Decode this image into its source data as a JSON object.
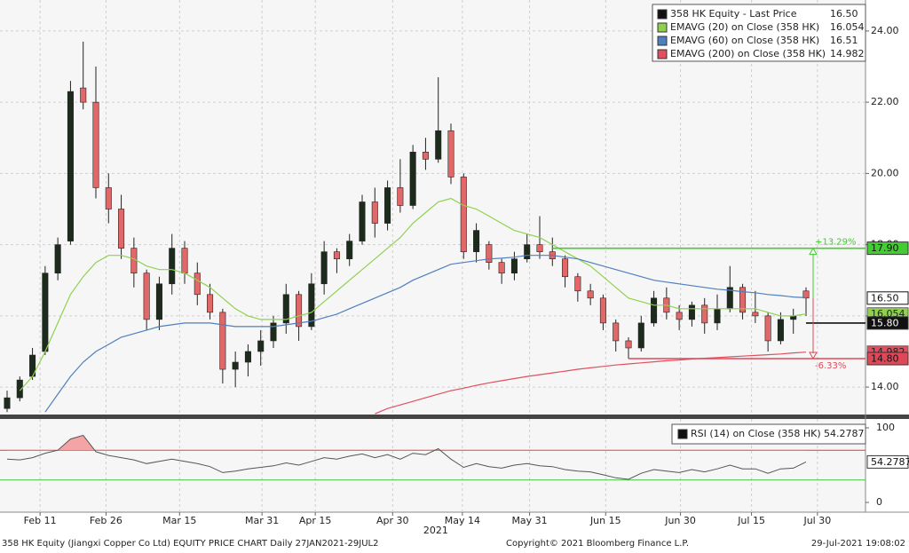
{
  "chart_data": [
    {
      "type": "candlestick",
      "name": "358 HK Equity - Last Price",
      "last_label": "16.50",
      "color": "#111111",
      "up_color": "#1c2b1c",
      "down_color": "#e06868",
      "open": [
        13.4,
        13.7,
        14.3,
        15.0,
        17.2,
        18.1,
        22.4,
        22.0,
        19.6,
        19.0,
        17.9,
        17.2,
        15.9,
        16.9,
        17.9,
        17.2,
        16.6,
        16.1,
        14.5,
        14.7,
        15.0,
        15.3,
        15.8,
        16.6,
        15.7,
        16.9,
        17.8,
        17.6,
        18.1,
        19.2,
        18.6,
        19.6,
        19.1,
        20.6,
        20.4,
        21.2,
        19.9,
        17.8,
        18.0,
        17.5,
        17.2,
        17.6,
        18.0,
        17.8,
        17.6,
        17.1,
        16.7,
        16.5,
        15.8,
        15.3,
        15.1,
        15.8,
        16.5,
        16.1,
        15.9,
        16.3,
        15.8,
        16.2,
        16.8,
        16.1,
        16.0,
        15.3,
        15.9,
        16.7
      ],
      "high": [
        13.9,
        14.3,
        15.1,
        17.4,
        18.2,
        22.6,
        23.7,
        23.0,
        20.0,
        19.4,
        18.2,
        17.3,
        17.1,
        18.3,
        18.1,
        17.5,
        16.9,
        16.2,
        15.0,
        15.2,
        15.6,
        16.0,
        16.9,
        16.7,
        17.2,
        18.1,
        17.9,
        18.3,
        19.4,
        19.6,
        19.8,
        20.4,
        20.8,
        21.0,
        22.7,
        21.4,
        20.0,
        18.6,
        18.1,
        17.6,
        17.8,
        18.3,
        18.8,
        18.2,
        17.7,
        17.2,
        16.9,
        16.6,
        15.9,
        15.4,
        16.0,
        16.7,
        16.8,
        16.3,
        16.4,
        16.5,
        16.6,
        17.4,
        16.9,
        16.7,
        16.1,
        16.1,
        16.2,
        16.8
      ],
      "low": [
        13.3,
        13.6,
        14.2,
        14.9,
        17.0,
        18.0,
        21.8,
        19.3,
        18.6,
        17.6,
        16.8,
        15.6,
        15.6,
        16.6,
        16.9,
        16.3,
        15.9,
        14.1,
        14.0,
        14.3,
        14.6,
        15.1,
        15.5,
        15.3,
        15.6,
        16.6,
        17.2,
        17.4,
        18.0,
        18.2,
        18.4,
        18.9,
        19.0,
        20.1,
        20.3,
        19.7,
        17.6,
        17.5,
        17.3,
        16.9,
        17.0,
        17.5,
        17.6,
        17.4,
        16.8,
        16.4,
        16.3,
        15.6,
        15.0,
        14.8,
        15.0,
        15.7,
        15.9,
        15.6,
        15.7,
        15.5,
        15.6,
        16.1,
        15.9,
        15.8,
        15.0,
        15.2,
        15.5,
        16.0
      ],
      "close": [
        13.7,
        14.2,
        14.9,
        17.2,
        18.0,
        22.3,
        22.0,
        19.6,
        19.0,
        17.9,
        17.2,
        15.9,
        16.9,
        17.9,
        17.2,
        16.6,
        16.1,
        14.5,
        14.7,
        15.0,
        15.3,
        15.8,
        16.6,
        15.7,
        16.9,
        17.8,
        17.6,
        18.1,
        19.2,
        18.6,
        19.6,
        19.1,
        20.6,
        20.4,
        21.2,
        19.9,
        17.8,
        18.4,
        17.5,
        17.2,
        17.6,
        18.0,
        17.8,
        17.6,
        17.1,
        16.7,
        16.5,
        15.8,
        15.3,
        15.1,
        15.8,
        16.5,
        16.1,
        15.9,
        16.3,
        15.8,
        16.2,
        16.8,
        16.1,
        16.0,
        15.3,
        15.9,
        16.0,
        16.5
      ],
      "series": [
        {
          "name": "EMAVG (20)  on Close (358 HK)",
          "last_label": "16.054",
          "color": "#8fd14f",
          "values": [
            null,
            13.9,
            14.3,
            15.0,
            15.8,
            16.6,
            17.1,
            17.5,
            17.7,
            17.7,
            17.6,
            17.4,
            17.3,
            17.3,
            17.2,
            17.0,
            16.8,
            16.5,
            16.2,
            16.0,
            15.9,
            15.9,
            15.9,
            16.0,
            16.1,
            16.4,
            16.7,
            17.0,
            17.3,
            17.6,
            17.9,
            18.2,
            18.6,
            18.9,
            19.2,
            19.3,
            19.1,
            19.0,
            18.8,
            18.6,
            18.4,
            18.3,
            18.2,
            18.0,
            17.8,
            17.6,
            17.4,
            17.1,
            16.8,
            16.5,
            16.4,
            16.3,
            16.3,
            16.2,
            16.2,
            16.2,
            16.2,
            16.2,
            16.2,
            16.2,
            16.1,
            16.0,
            16.0,
            16.054
          ]
        },
        {
          "name": "EMAVG (60)  on Close (358 HK)",
          "last_label": "16.51",
          "color": "#4f7fbf",
          "values": [
            null,
            null,
            null,
            13.3,
            13.8,
            14.3,
            14.7,
            15.0,
            15.2,
            15.4,
            15.5,
            15.6,
            15.7,
            15.75,
            15.8,
            15.8,
            15.8,
            15.75,
            15.7,
            15.7,
            15.7,
            15.7,
            15.75,
            15.8,
            15.85,
            15.95,
            16.05,
            16.2,
            16.35,
            16.5,
            16.65,
            16.8,
            17.0,
            17.15,
            17.3,
            17.45,
            17.5,
            17.55,
            17.6,
            17.62,
            17.65,
            17.7,
            17.7,
            17.7,
            17.65,
            17.6,
            17.5,
            17.4,
            17.3,
            17.2,
            17.1,
            17.0,
            16.95,
            16.9,
            16.85,
            16.8,
            16.75,
            16.72,
            16.68,
            16.65,
            16.6,
            16.57,
            16.53,
            16.51
          ]
        },
        {
          "name": "EMAVG (200)  on Close (358 HK)",
          "last_label": "14.982",
          "color": "#e05060",
          "values": [
            null,
            null,
            null,
            null,
            null,
            null,
            null,
            null,
            null,
            null,
            null,
            null,
            null,
            null,
            null,
            null,
            null,
            null,
            null,
            null,
            null,
            null,
            null,
            null,
            null,
            null,
            null,
            null,
            null,
            13.25,
            13.4,
            13.5,
            13.6,
            13.7,
            13.8,
            13.9,
            13.97,
            14.05,
            14.12,
            14.18,
            14.24,
            14.3,
            14.35,
            14.4,
            14.45,
            14.5,
            14.54,
            14.58,
            14.62,
            14.65,
            14.68,
            14.71,
            14.74,
            14.76,
            14.79,
            14.81,
            14.83,
            14.85,
            14.87,
            14.89,
            14.91,
            14.93,
            14.96,
            14.982
          ]
        }
      ],
      "levels": [
        {
          "value": 17.9,
          "label": "17.90",
          "color": "#44cc33",
          "x_start": 43,
          "change_label": "+13.29%"
        },
        {
          "value": 15.8,
          "label": "15.80",
          "color": "#111111",
          "x_start": 63
        },
        {
          "value": 14.8,
          "label": "14.80",
          "color": "#e04858",
          "x_start": 49,
          "change_label": "-6.33%"
        }
      ],
      "xlim": [
        -0.56,
        67.69
      ],
      "ylim": [
        13.23,
        24.87
      ],
      "yticks": [
        {
          "value": 14,
          "label": "14.00"
        },
        {
          "value": 16,
          "label": "16.00"
        },
        {
          "value": 18,
          "label": "18.00"
        },
        {
          "value": 20,
          "label": "20.00"
        },
        {
          "value": 22,
          "label": "22.00"
        },
        {
          "value": 24,
          "label": "24.00"
        }
      ],
      "grid": true
    },
    {
      "type": "line",
      "name": "RSI (14)  on Close (358 HK)",
      "last_label": "54.2787",
      "color": "#555555",
      "overbought_fill": "#f4a4a4",
      "values": [
        58,
        57,
        60,
        66,
        70,
        85,
        90,
        68,
        63,
        60,
        57,
        52,
        55,
        58,
        55,
        52,
        48,
        40,
        42,
        45,
        47,
        49,
        53,
        50,
        55,
        60,
        58,
        62,
        65,
        60,
        64,
        58,
        66,
        64,
        72,
        58,
        47,
        52,
        48,
        46,
        50,
        52,
        49,
        48,
        44,
        42,
        41,
        37,
        33,
        31,
        39,
        44,
        42,
        40,
        44,
        41,
        45,
        50,
        45,
        45,
        39,
        45,
        46,
        54.2787
      ],
      "bands": [
        {
          "value": 70,
          "color": "#e03838"
        },
        {
          "value": 30,
          "color": "#3cc43c"
        }
      ],
      "xlim": [
        -0.56,
        67.69
      ],
      "ylim": [
        -13.1,
        111.9
      ],
      "yticks": [
        0,
        100
      ],
      "xticks": [
        {
          "value": 2.6,
          "label": "Feb 11"
        },
        {
          "value": 7.8,
          "label": "Feb 26"
        },
        {
          "value": 13.6,
          "label": "Mar 15"
        },
        {
          "value": 20.1,
          "label": "Mar 31"
        },
        {
          "value": 24.3,
          "label": "Apr 15"
        },
        {
          "value": 30.4,
          "label": "Apr 30"
        },
        {
          "value": 35.9,
          "label": "May 14"
        },
        {
          "value": 41.2,
          "label": "May 31"
        },
        {
          "value": 47.2,
          "label": "Jun 15"
        },
        {
          "value": 53.1,
          "label": "Jun 30"
        },
        {
          "value": 58.7,
          "label": "Jul 15"
        },
        {
          "value": 63.9,
          "label": "Jul 30"
        }
      ],
      "year_label": "2021",
      "grid": true
    }
  ],
  "footer": {
    "left": "358 HK Equity (Jiangxi Copper Co Ltd) EQUITY PRICE CHART  Daily 27JAN2021-29JUL2",
    "center": "Copyright© 2021 Bloomberg Finance L.P.",
    "right": "29-Jul-2021 19:08:02"
  }
}
